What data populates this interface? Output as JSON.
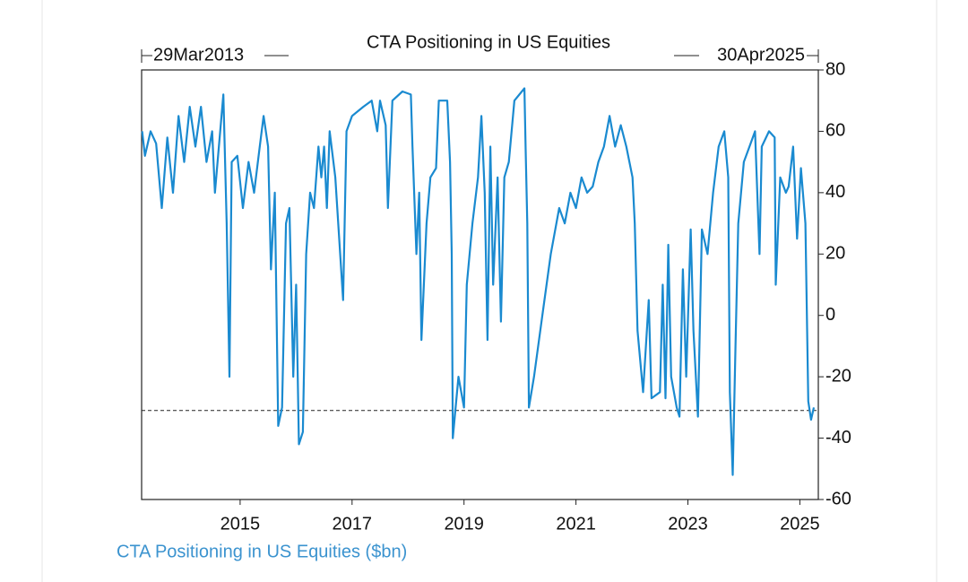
{
  "chart_data": {
    "type": "line",
    "title": "CTA Positioning in US Equities",
    "annotations": [
      "29Mar2013",
      "30Apr2025"
    ],
    "xlim": [
      2013.24,
      2025.33
    ],
    "xticks": [
      2015,
      2017,
      2019,
      2021,
      2023,
      2025
    ],
    "ylim": [
      -60,
      80
    ],
    "yticks": [
      -60,
      -40,
      -20,
      0,
      20,
      40,
      60,
      80
    ],
    "reference_line": -31,
    "x": [
      2013.25,
      2013.3,
      2013.4,
      2013.5,
      2013.6,
      2013.7,
      2013.8,
      2013.9,
      2014.0,
      2014.1,
      2014.2,
      2014.3,
      2014.4,
      2014.5,
      2014.55,
      2014.62,
      2014.7,
      2014.76,
      2014.81,
      2014.85,
      2014.95,
      2015.05,
      2015.15,
      2015.25,
      2015.35,
      2015.42,
      2015.5,
      2015.55,
      2015.62,
      2015.68,
      2015.75,
      2015.82,
      2015.88,
      2015.95,
      2016.0,
      2016.05,
      2016.12,
      2016.18,
      2016.25,
      2016.32,
      2016.4,
      2016.45,
      2016.5,
      2016.55,
      2016.6,
      2016.7,
      2016.84,
      2016.9,
      2017.0,
      2017.2,
      2017.35,
      2017.45,
      2017.5,
      2017.6,
      2017.64,
      2017.72,
      2017.9,
      2018.05,
      2018.08,
      2018.15,
      2018.2,
      2018.24,
      2018.33,
      2018.4,
      2018.5,
      2018.55,
      2018.7,
      2018.75,
      2018.78,
      2018.8,
      2018.9,
      2019.0,
      2019.05,
      2019.15,
      2019.25,
      2019.31,
      2019.37,
      2019.42,
      2019.47,
      2019.52,
      2019.6,
      2019.66,
      2019.72,
      2019.8,
      2019.9,
      2020.08,
      2020.1,
      2020.13,
      2020.16,
      2020.25,
      2020.4,
      2020.55,
      2020.7,
      2020.8,
      2020.9,
      2021.0,
      2021.1,
      2021.2,
      2021.3,
      2021.4,
      2021.5,
      2021.6,
      2021.7,
      2021.8,
      2021.9,
      2022.01,
      2022.05,
      2022.1,
      2022.15,
      2022.2,
      2022.3,
      2022.35,
      2022.5,
      2022.55,
      2022.6,
      2022.65,
      2022.7,
      2022.8,
      2022.85,
      2022.91,
      2022.97,
      2023.05,
      2023.1,
      2023.18,
      2023.25,
      2023.35,
      2023.45,
      2023.55,
      2023.65,
      2023.72,
      2023.75,
      2023.8,
      2023.85,
      2023.9,
      2024.0,
      2024.1,
      2024.2,
      2024.28,
      2024.32,
      2024.45,
      2024.55,
      2024.57,
      2024.65,
      2024.75,
      2024.8,
      2024.88,
      2024.95,
      2025.02,
      2025.1,
      2025.15,
      2025.2,
      2025.25
    ],
    "series": [
      {
        "name": "CTA Positioning in US Equities ($bn)",
        "color": "#1a8ad0",
        "values": [
          60,
          52,
          60,
          56,
          35,
          58,
          40,
          65,
          50,
          68,
          55,
          68,
          50,
          60,
          40,
          55,
          72,
          30,
          -20,
          50,
          52,
          35,
          50,
          40,
          55,
          65,
          55,
          15,
          40,
          -36,
          -30,
          30,
          35,
          -20,
          10,
          -42,
          -38,
          20,
          40,
          35,
          55,
          45,
          55,
          35,
          60,
          45,
          5,
          60,
          65,
          68,
          70,
          60,
          70,
          62,
          35,
          70,
          73,
          72,
          55,
          20,
          40,
          -8,
          30,
          45,
          48,
          70,
          70,
          50,
          20,
          -40,
          -20,
          -30,
          10,
          30,
          45,
          65,
          40,
          -8,
          55,
          10,
          45,
          -2,
          45,
          50,
          70,
          74,
          55,
          30,
          -30,
          -20,
          0,
          20,
          35,
          30,
          40,
          35,
          45,
          40,
          42,
          50,
          55,
          65,
          55,
          62,
          55,
          45,
          30,
          -5,
          -15,
          -25,
          5,
          -27,
          -25,
          10,
          -27,
          23,
          -20,
          -30,
          -33,
          15,
          -20,
          28,
          -5,
          -33,
          28,
          20,
          40,
          55,
          60,
          45,
          -25,
          -52,
          -10,
          30,
          50,
          55,
          60,
          20,
          55,
          60,
          58,
          10,
          45,
          40,
          42,
          55,
          25,
          48,
          30,
          -28,
          -34,
          -30
        ]
      }
    ]
  }
}
